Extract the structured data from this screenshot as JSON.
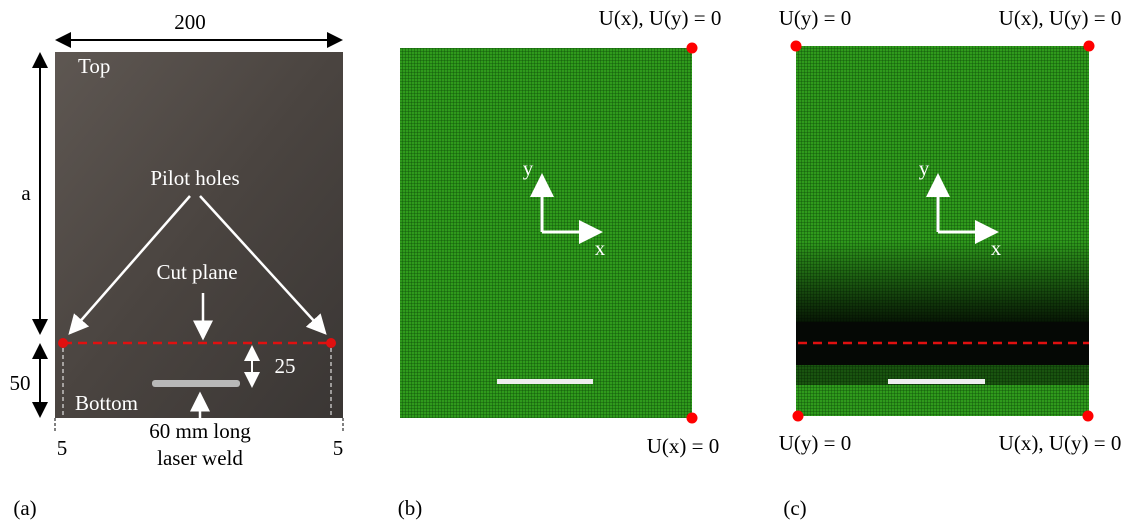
{
  "panel_a": {
    "width_label": "200",
    "top_label": "Top",
    "height_label": "a",
    "pilot_holes": "Pilot holes",
    "cut_plane": "Cut plane",
    "offset_label": "25",
    "bottom_height_label": "50",
    "bottom_label": "Bottom",
    "edge_left": "5",
    "edge_right": "5",
    "weld_line1": "60 mm long",
    "weld_line2": "laser weld",
    "caption": "(a)"
  },
  "panel_b": {
    "top_right_bc": "U(x), U(y) = 0",
    "axis_y": "y",
    "axis_x": "x",
    "bottom_right_bc": "U(x) = 0",
    "caption": "(b)"
  },
  "panel_c": {
    "top_left_bc": "U(y) = 0",
    "top_right_bc": "U(x), U(y) = 0",
    "axis_y": "y",
    "axis_x": "x",
    "bottom_left_bc": "U(y) = 0",
    "bottom_right_bc": "U(x), U(y) = 0",
    "caption": "(c)"
  }
}
